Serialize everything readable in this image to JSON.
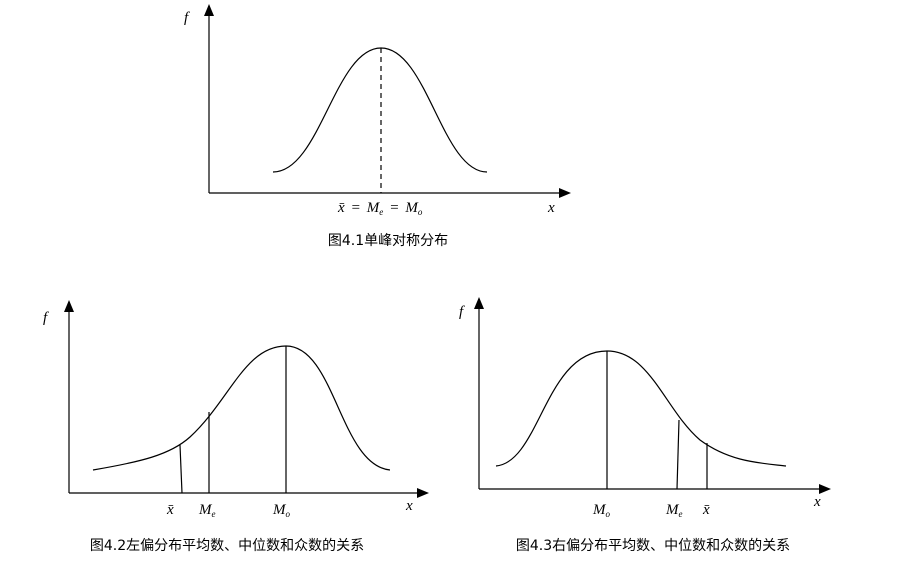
{
  "figures": [
    {
      "y_axis_label": "f",
      "x_axis_label": "x",
      "label_parts": [
        {
          "symbol": "x̄"
        },
        {
          "symbol": "="
        },
        {
          "symbol": "M",
          "subscript": "e"
        },
        {
          "symbol": "="
        },
        {
          "symbol": "M",
          "subscript": "o"
        }
      ],
      "caption": "图4.1单峰对称分布"
    },
    {
      "y_axis_label": "f",
      "x_axis_label": "x",
      "markers": [
        {
          "symbol": "x̄"
        },
        {
          "symbol": "M",
          "subscript": "e"
        },
        {
          "symbol": "M",
          "subscript": "o"
        }
      ],
      "caption": "图4.2左偏分布平均数、中位数和众数的关系"
    },
    {
      "y_axis_label": "f",
      "x_axis_label": "x",
      "markers": [
        {
          "symbol": "M",
          "subscript": "o"
        },
        {
          "symbol": "M",
          "subscript": "e"
        },
        {
          "symbol": "x̄"
        }
      ],
      "caption": "图4.3右偏分布平均数、中位数和众数的关系"
    }
  ]
}
